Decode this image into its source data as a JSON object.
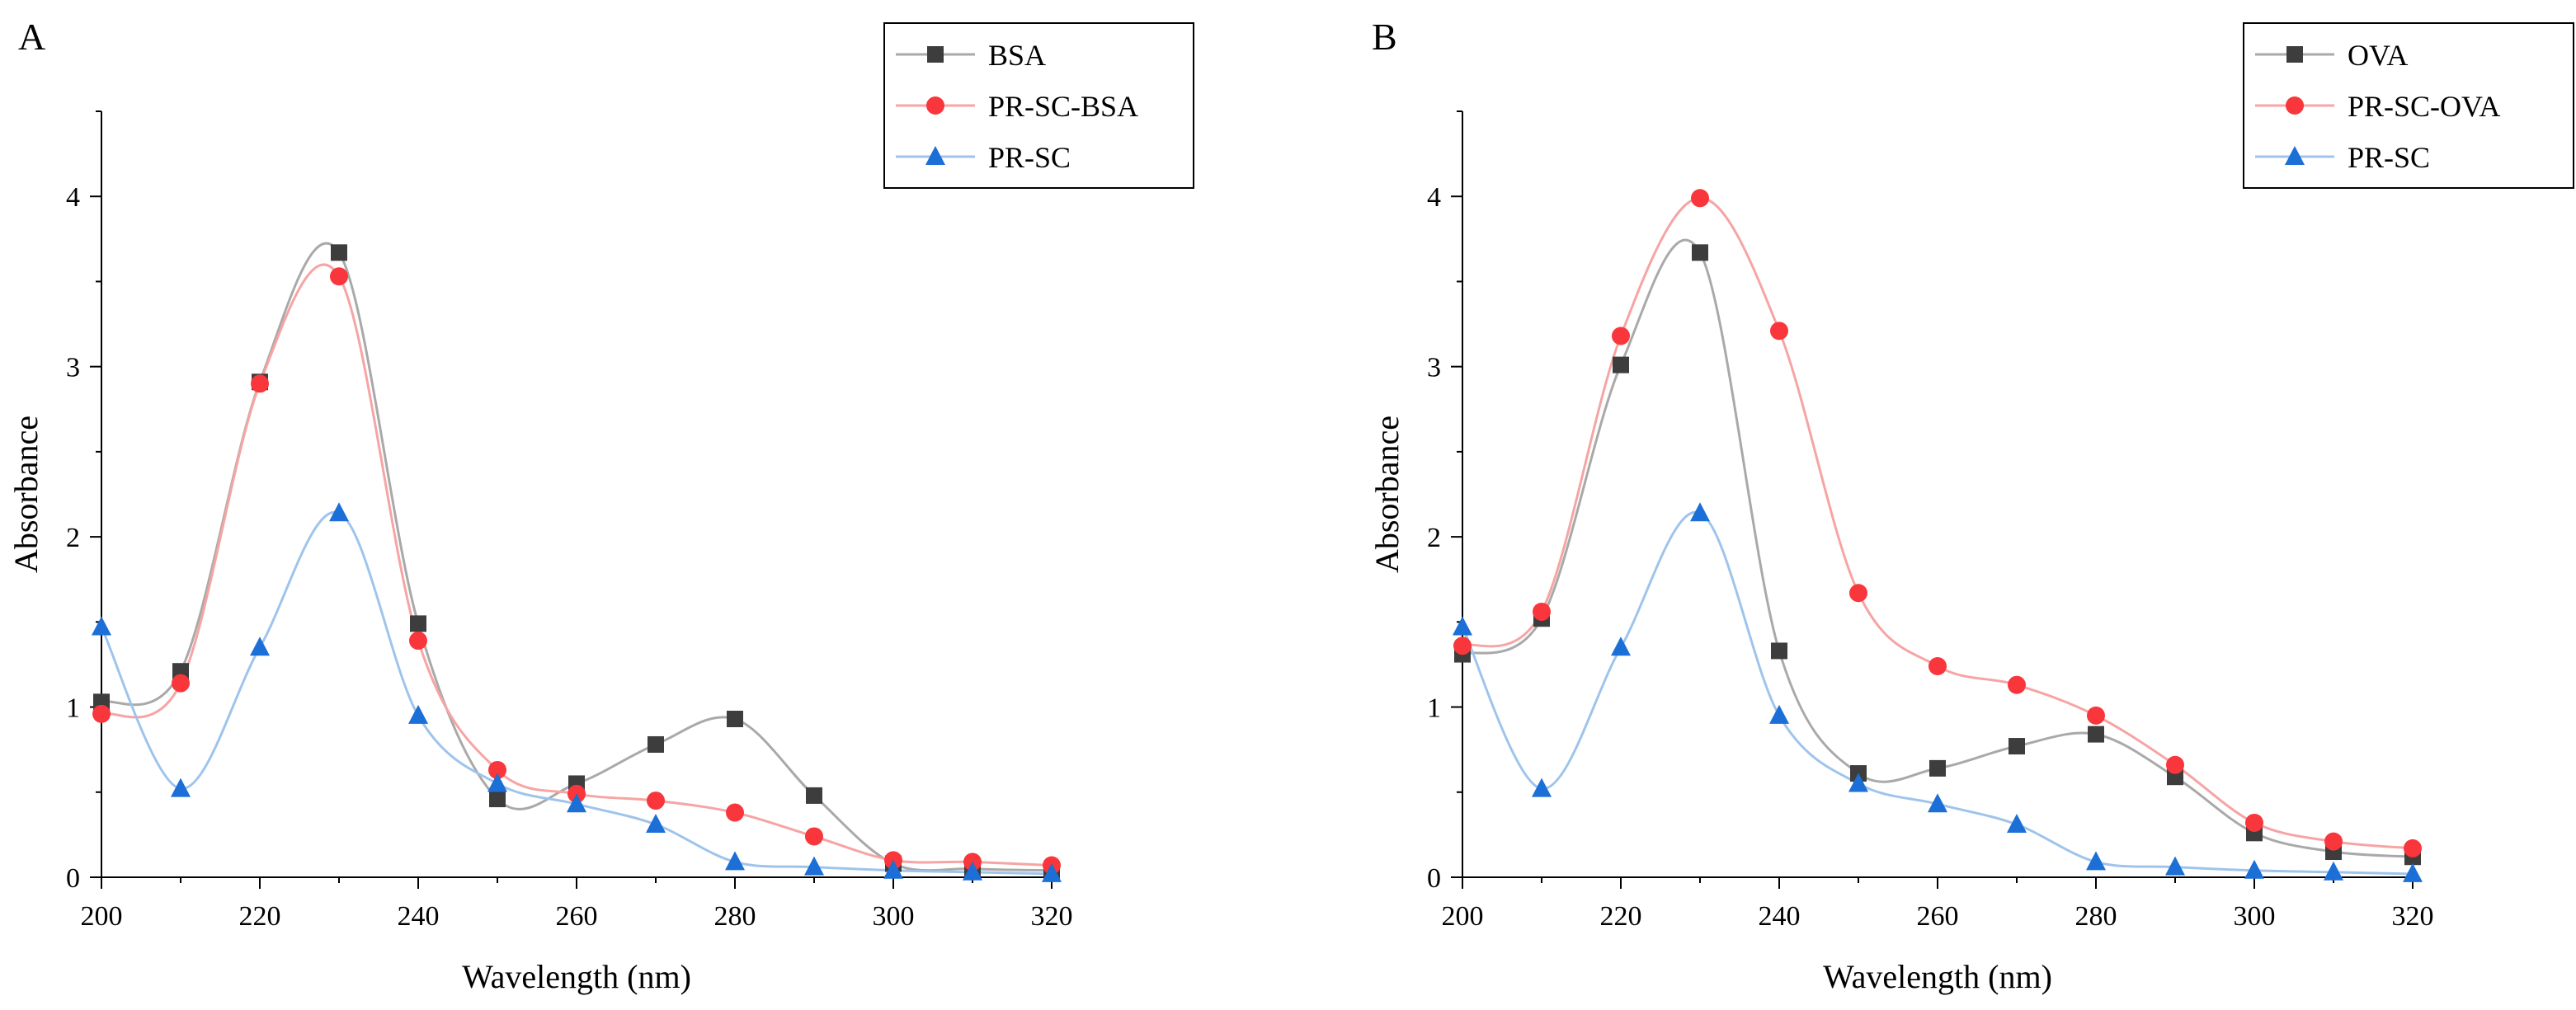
{
  "chart_data": [
    {
      "panel_label": "A",
      "type": "line",
      "xlabel": "Wavelength (nm)",
      "ylabel": "Absorbance",
      "xlim": [
        200,
        320
      ],
      "ylim": [
        0,
        4.5
      ],
      "xticks": [
        200,
        220,
        240,
        260,
        280,
        300,
        320
      ],
      "yticks": [
        0,
        1,
        2,
        3,
        4
      ],
      "grid": false,
      "legend_position": "top-right",
      "series": [
        {
          "name": "BSA",
          "marker": "square",
          "color": "#3d3d3d",
          "line_color": "#a9a9a9",
          "x": [
            200,
            210,
            220,
            230,
            240,
            250,
            260,
            270,
            280,
            290,
            300,
            310,
            320
          ],
          "y": [
            1.03,
            1.21,
            2.91,
            3.67,
            1.49,
            0.46,
            0.55,
            0.78,
            0.93,
            0.48,
            0.08,
            0.05,
            0.04
          ]
        },
        {
          "name": "PR-SC-BSA",
          "marker": "circle",
          "color": "#f8363b",
          "line_color": "#f6a4a4",
          "x": [
            200,
            210,
            220,
            230,
            240,
            250,
            260,
            270,
            280,
            290,
            300,
            310,
            320
          ],
          "y": [
            0.96,
            1.14,
            2.9,
            3.53,
            1.39,
            0.63,
            0.49,
            0.45,
            0.38,
            0.24,
            0.1,
            0.09,
            0.07
          ]
        },
        {
          "name": "PR-SC",
          "marker": "triangle",
          "color": "#1b6fd6",
          "line_color": "#9fc4ec",
          "x": [
            200,
            210,
            220,
            230,
            240,
            250,
            260,
            270,
            280,
            290,
            300,
            310,
            320
          ],
          "y": [
            1.47,
            0.52,
            1.35,
            2.14,
            0.95,
            0.55,
            0.43,
            0.31,
            0.09,
            0.06,
            0.04,
            0.03,
            0.02
          ]
        }
      ]
    },
    {
      "panel_label": "B",
      "type": "line",
      "xlabel": "Wavelength (nm)",
      "ylabel": "Absorbance",
      "xlim": [
        200,
        320
      ],
      "ylim": [
        0,
        4.5
      ],
      "xticks": [
        200,
        220,
        240,
        260,
        280,
        300,
        320
      ],
      "yticks": [
        0,
        1,
        2,
        3,
        4
      ],
      "grid": false,
      "legend_position": "top-right",
      "series": [
        {
          "name": "OVA",
          "marker": "square",
          "color": "#3d3d3d",
          "line_color": "#a9a9a9",
          "x": [
            200,
            210,
            220,
            230,
            240,
            250,
            260,
            270,
            280,
            290,
            300,
            310,
            320
          ],
          "y": [
            1.31,
            1.52,
            3.01,
            3.67,
            1.33,
            0.61,
            0.64,
            0.77,
            0.84,
            0.59,
            0.26,
            0.15,
            0.12
          ]
        },
        {
          "name": "PR-SC-OVA",
          "marker": "circle",
          "color": "#f8363b",
          "line_color": "#f6a4a4",
          "x": [
            200,
            210,
            220,
            230,
            240,
            250,
            260,
            270,
            280,
            290,
            300,
            310,
            320
          ],
          "y": [
            1.36,
            1.56,
            3.18,
            3.99,
            3.21,
            1.67,
            1.24,
            1.13,
            0.95,
            0.66,
            0.32,
            0.21,
            0.17
          ]
        },
        {
          "name": "PR-SC",
          "marker": "triangle",
          "color": "#1b6fd6",
          "line_color": "#9fc4ec",
          "x": [
            200,
            210,
            220,
            230,
            240,
            250,
            260,
            270,
            280,
            290,
            300,
            310,
            320
          ],
          "y": [
            1.47,
            0.52,
            1.35,
            2.14,
            0.95,
            0.55,
            0.43,
            0.31,
            0.09,
            0.06,
            0.04,
            0.03,
            0.02
          ]
        }
      ]
    }
  ]
}
